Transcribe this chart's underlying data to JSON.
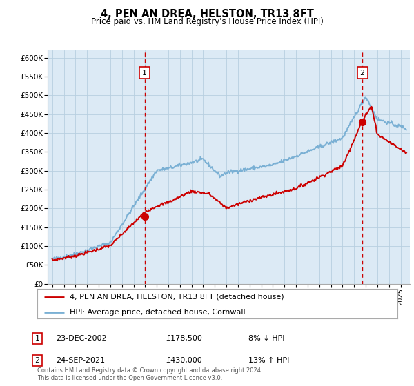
{
  "title": "4, PEN AN DREA, HELSTON, TR13 8FT",
  "subtitle": "Price paid vs. HM Land Registry's House Price Index (HPI)",
  "bg_color": "#dceaf5",
  "ylabel": "",
  "ylim": [
    0,
    620000
  ],
  "yticks": [
    0,
    50000,
    100000,
    150000,
    200000,
    250000,
    300000,
    350000,
    400000,
    450000,
    500000,
    550000,
    600000
  ],
  "ytick_labels": [
    "£0",
    "£50K",
    "£100K",
    "£150K",
    "£200K",
    "£250K",
    "£300K",
    "£350K",
    "£400K",
    "£450K",
    "£500K",
    "£550K",
    "£600K"
  ],
  "legend_label_red": "4, PEN AN DREA, HELSTON, TR13 8FT (detached house)",
  "legend_label_blue": "HPI: Average price, detached house, Cornwall",
  "marker1_date": "23-DEC-2002",
  "marker1_price": "£178,500",
  "marker1_pct": "8% ↓ HPI",
  "marker2_date": "24-SEP-2021",
  "marker2_price": "£430,000",
  "marker2_pct": "13% ↑ HPI",
  "footer": "Contains HM Land Registry data © Crown copyright and database right 2024.\nThis data is licensed under the Open Government Licence v3.0.",
  "red_color": "#cc0000",
  "blue_color": "#7ab0d4",
  "grid_color": "#b8cfe0",
  "sale1_x": 2002.96,
  "sale1_y": 178500,
  "sale2_x": 2021.71,
  "sale2_y": 430000,
  "xmin": 1995,
  "xmax": 2025
}
